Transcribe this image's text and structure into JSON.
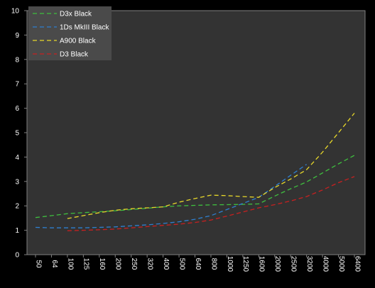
{
  "chart_data": {
    "type": "line",
    "title": "",
    "xlabel": "",
    "ylabel": "",
    "ylim": [
      0,
      10
    ],
    "yticks": [
      "0",
      "1",
      "2",
      "3",
      "4",
      "5",
      "6",
      "7",
      "8",
      "9",
      "10"
    ],
    "categories": [
      "50",
      "64",
      "100",
      "125",
      "160",
      "200",
      "250",
      "320",
      "400",
      "500",
      "640",
      "800",
      "1000",
      "1250",
      "1600",
      "2000",
      "2500",
      "3200",
      "4000",
      "5000",
      "6400"
    ],
    "legend_position": "top-left",
    "grid": false,
    "series": [
      {
        "name": "D3x Black",
        "color": "#3fbf3f",
        "values": [
          1.52,
          1.6,
          1.68,
          1.72,
          1.76,
          1.8,
          1.85,
          1.9,
          1.96,
          2.0,
          2.02,
          2.04,
          2.05,
          2.06,
          2.08,
          2.4,
          2.7,
          2.98,
          3.35,
          3.72,
          4.07
        ]
      },
      {
        "name": "1Ds MkIII Black",
        "color": "#2f7fcf",
        "values": [
          1.12,
          1.1,
          1.1,
          1.1,
          1.12,
          1.14,
          1.18,
          1.22,
          1.28,
          1.35,
          1.45,
          1.6,
          1.85,
          2.1,
          2.35,
          2.8,
          3.25,
          3.7,
          null,
          null,
          null
        ]
      },
      {
        "name": "A900 Black",
        "color": "#e8d82a",
        "values": [
          null,
          null,
          1.48,
          1.6,
          1.72,
          1.82,
          1.88,
          1.92,
          1.96,
          2.15,
          2.3,
          2.44,
          2.42,
          2.38,
          2.35,
          2.75,
          3.1,
          3.48,
          4.2,
          5.0,
          5.8
        ]
      },
      {
        "name": "D3 Black",
        "color": "#c82020",
        "values": [
          null,
          null,
          0.98,
          1.0,
          1.02,
          1.05,
          1.1,
          1.15,
          1.2,
          1.25,
          1.32,
          1.42,
          1.58,
          1.75,
          1.92,
          2.05,
          2.2,
          2.38,
          2.65,
          2.95,
          3.2
        ]
      }
    ]
  }
}
